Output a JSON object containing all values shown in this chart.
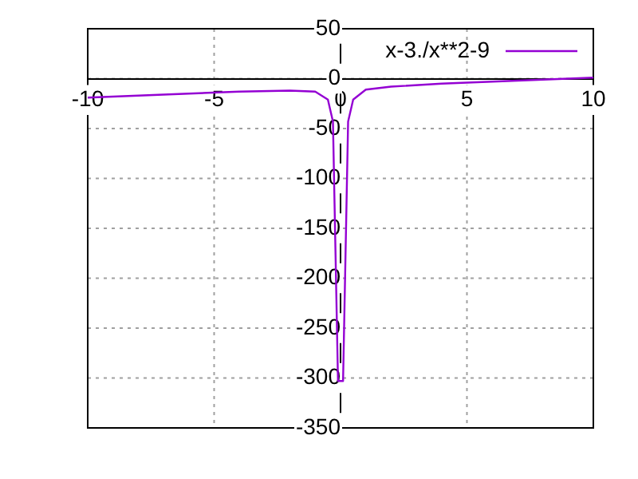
{
  "chart_data": {
    "type": "line",
    "x": [
      -10,
      -8,
      -6,
      -4,
      -2,
      -1,
      -0.5,
      -0.3,
      -0.1,
      0.1,
      0.3,
      0.5,
      1,
      2,
      4,
      6,
      8,
      10
    ],
    "series": [
      {
        "name": "x-3./x**2-9",
        "color": "#9400d3",
        "values": [
          -19,
          -17,
          -15,
          -13,
          -12,
          -13,
          -21,
          -43,
          -303,
          -303,
          -43,
          -21,
          -11,
          -8,
          -5,
          -3,
          -1,
          1
        ]
      }
    ],
    "xlim": [
      -10,
      10
    ],
    "xticks": [
      -10,
      -5,
      0,
      5,
      10
    ],
    "ylim": [
      -350,
      50
    ],
    "yticks": [
      -350,
      -300,
      -250,
      -200,
      -150,
      -100,
      -50,
      0,
      50
    ],
    "grid": true,
    "legend": "top right",
    "marker": "none",
    "line_style": "solid"
  }
}
